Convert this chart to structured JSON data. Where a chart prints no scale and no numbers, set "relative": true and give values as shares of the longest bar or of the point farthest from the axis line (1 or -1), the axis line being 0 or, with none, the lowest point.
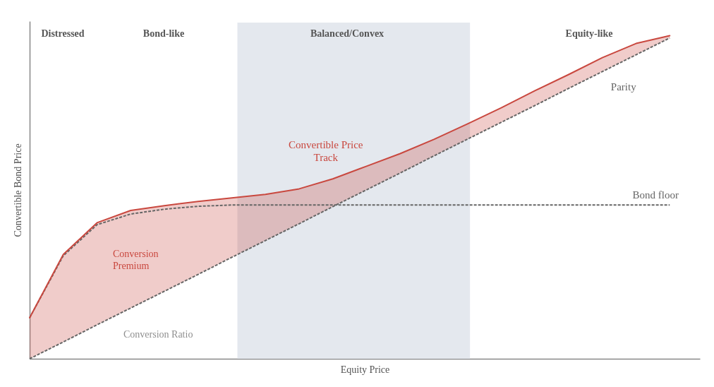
{
  "chart_data": {
    "type": "line",
    "relative": true,
    "xlabel": "Equity Price",
    "ylabel": "Convertible Bond Price",
    "categories": [
      null,
      null,
      null,
      null,
      null,
      null,
      null,
      null,
      null,
      null,
      null,
      null,
      null,
      null,
      null,
      null,
      null,
      null,
      null,
      null
    ],
    "series": [
      {
        "name": "Convertible Price Track",
        "color": "#c9483f",
        "line_style": "solid",
        "values": [
          0.127,
          0.323,
          0.421,
          0.459,
          0.474,
          0.487,
          0.498,
          0.509,
          0.526,
          0.557,
          0.596,
          0.635,
          0.679,
          0.727,
          0.777,
          0.83,
          0.88,
          0.932,
          0.976,
          1
        ],
        "lower": [
          0,
          0.052,
          0.105,
          0.157,
          0.209,
          0.261,
          0.314,
          0.366,
          0.418,
          0.471,
          0.523,
          0.575,
          0.628,
          0.68,
          0.732,
          0.784,
          0.837,
          0.889,
          0.941,
          0.993
        ],
        "upper": [
          0.127,
          0.323,
          0.421,
          0.459,
          0.474,
          0.487,
          0.498,
          0.509,
          0.526,
          0.557,
          0.596,
          0.635,
          0.679,
          0.727,
          0.777,
          0.83,
          0.88,
          0.932,
          0.976,
          1
        ]
      },
      {
        "name": "Parity",
        "color": "#666666",
        "line_style": "dashed",
        "values": [
          0,
          0.052,
          0.105,
          0.157,
          0.209,
          0.261,
          0.314,
          0.366,
          0.418,
          0.471,
          0.523,
          0.575,
          0.628,
          0.68,
          0.732,
          0.784,
          0.837,
          0.889,
          0.941,
          0.993
        ]
      },
      {
        "name": "Bond floor",
        "color": "#666666",
        "line_style": "dashed",
        "values": [
          0.127,
          0.319,
          0.415,
          0.448,
          0.463,
          0.472,
          0.476,
          0.476,
          0.476,
          0.476,
          0.476,
          0.476,
          0.476,
          0.476,
          0.476,
          0.476,
          0.476,
          0.476,
          0.476,
          0.476
        ]
      }
    ],
    "annotations": [
      "Distressed",
      "Bond-like",
      "Balanced/Convex",
      "Equity-like",
      "Conversion Premium",
      "Conversion Ratio"
    ]
  }
}
